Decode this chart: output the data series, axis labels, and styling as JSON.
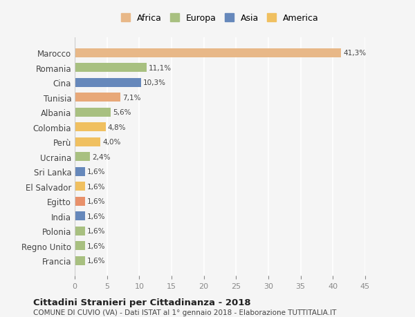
{
  "categories": [
    "Francia",
    "Regno Unito",
    "Polonia",
    "India",
    "Egitto",
    "El Salvador",
    "Sri Lanka",
    "Ucraina",
    "Perù",
    "Colombia",
    "Albania",
    "Tunisia",
    "Cina",
    "Romania",
    "Marocco"
  ],
  "values": [
    1.6,
    1.6,
    1.6,
    1.6,
    1.6,
    1.6,
    1.6,
    2.4,
    4.0,
    4.8,
    5.6,
    7.1,
    10.3,
    11.1,
    41.3
  ],
  "colors": [
    "#a8c080",
    "#a8c080",
    "#a8c080",
    "#6688bb",
    "#e8906a",
    "#f0c060",
    "#6688bb",
    "#a8c080",
    "#f0c060",
    "#f0c060",
    "#a8c080",
    "#e8a878",
    "#6688bb",
    "#a8c080",
    "#e8b888"
  ],
  "labels": [
    "1,6%",
    "1,6%",
    "1,6%",
    "1,6%",
    "1,6%",
    "1,6%",
    "1,6%",
    "2,4%",
    "4,0%",
    "4,8%",
    "5,6%",
    "7,1%",
    "10,3%",
    "11,1%",
    "41,3%"
  ],
  "legend": [
    {
      "label": "Africa",
      "color": "#e8b888"
    },
    {
      "label": "Europa",
      "color": "#a8c080"
    },
    {
      "label": "Asia",
      "color": "#6688bb"
    },
    {
      "label": "America",
      "color": "#f0c060"
    }
  ],
  "xlim": [
    0,
    45
  ],
  "xticks": [
    0,
    5,
    10,
    15,
    20,
    25,
    30,
    35,
    40,
    45
  ],
  "title": "Cittadini Stranieri per Cittadinanza - 2018",
  "subtitle": "COMUNE DI CUVIO (VA) - Dati ISTAT al 1° gennaio 2018 - Elaborazione TUTTITALIA.IT",
  "bg_color": "#f5f5f5",
  "bar_height": 0.6
}
